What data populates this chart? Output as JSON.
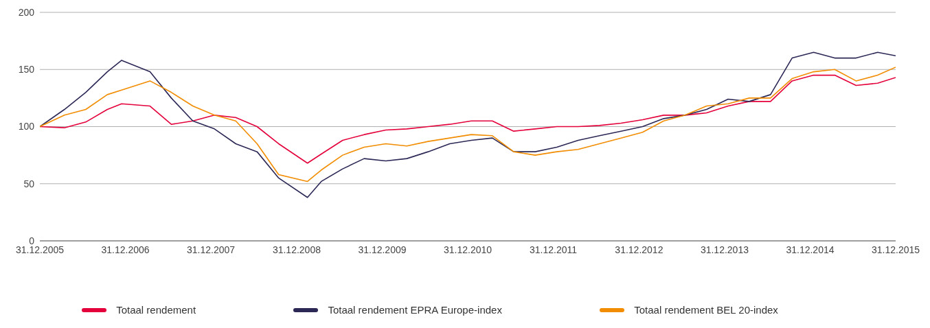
{
  "chart_data": {
    "type": "line",
    "x": [
      "2005-12-31",
      "2006-04",
      "2006-07",
      "2006-10",
      "2006-12",
      "2007-04",
      "2007-07",
      "2007-10",
      "2008-01",
      "2008-04",
      "2008-07",
      "2008-10",
      "2009-02",
      "2009-04",
      "2009-07",
      "2009-10",
      "2010-01",
      "2010-04",
      "2010-07",
      "2010-10",
      "2011-01",
      "2011-04",
      "2011-07",
      "2011-10",
      "2012-01",
      "2012-04",
      "2012-07",
      "2012-10",
      "2013-01",
      "2013-04",
      "2013-07",
      "2013-10",
      "2014-01",
      "2014-04",
      "2014-07",
      "2014-10",
      "2015-01",
      "2015-04",
      "2015-07",
      "2015-10",
      "2015-12-31"
    ],
    "series": [
      {
        "name": "Totaal rendement",
        "color": "#e4003a",
        "values": [
          100,
          99,
          104,
          115,
          120,
          118,
          102,
          105,
          110,
          108,
          100,
          85,
          68,
          76,
          88,
          93,
          97,
          98,
          100,
          102,
          105,
          105,
          96,
          98,
          100,
          100,
          101,
          103,
          106,
          110,
          110,
          112,
          118,
          122,
          122,
          140,
          145,
          145,
          136,
          138,
          143
        ]
      },
      {
        "name": "Totaal rendement EPRA Europe-index",
        "color": "#2b2856",
        "values": [
          100,
          115,
          130,
          148,
          158,
          148,
          125,
          105,
          98,
          85,
          78,
          55,
          38,
          52,
          63,
          72,
          70,
          72,
          78,
          85,
          88,
          90,
          78,
          78,
          82,
          88,
          92,
          96,
          100,
          107,
          110,
          115,
          124,
          122,
          128,
          160,
          165,
          160,
          160,
          165,
          162
        ]
      },
      {
        "name": "Totaal rendement BEL 20-index",
        "color": "#f28c00",
        "values": [
          100,
          110,
          115,
          128,
          132,
          140,
          130,
          118,
          110,
          105,
          85,
          58,
          52,
          62,
          75,
          82,
          85,
          83,
          87,
          90,
          93,
          92,
          78,
          75,
          78,
          80,
          85,
          90,
          95,
          105,
          110,
          118,
          120,
          125,
          125,
          142,
          148,
          150,
          140,
          145,
          152
        ]
      }
    ],
    "xlim": [
      "2005-12-31",
      "2015-12-31"
    ],
    "xticks": [
      {
        "value": "2005-12-31",
        "label": "31.12.2005"
      },
      {
        "value": "2006-12-31",
        "label": "31.12.2006"
      },
      {
        "value": "2007-12-31",
        "label": "31.12.2007"
      },
      {
        "value": "2008-12-31",
        "label": "31.12.2008"
      },
      {
        "value": "2009-12-31",
        "label": "31.12.2009"
      },
      {
        "value": "2010-12-31",
        "label": "31.12.2010"
      },
      {
        "value": "2011-12-31",
        "label": "31.12.2011"
      },
      {
        "value": "2012-12-31",
        "label": "31.12.2012"
      },
      {
        "value": "2013-12-31",
        "label": "31.12.2013"
      },
      {
        "value": "2014-12-31",
        "label": "31.12.2014"
      },
      {
        "value": "2015-12-31",
        "label": "31.12.2015"
      }
    ],
    "ylim": [
      0,
      200
    ],
    "yticks": [
      0,
      50,
      100,
      150,
      200
    ],
    "grid": "y",
    "legend": "bottom",
    "marker": "none",
    "line_style": "solid"
  }
}
